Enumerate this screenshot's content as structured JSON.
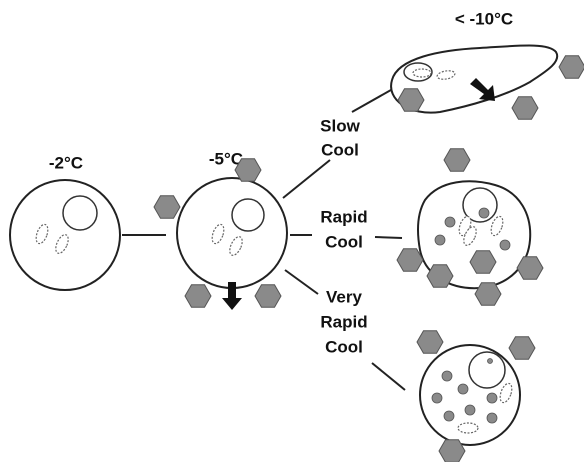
{
  "labels": {
    "temp_cold": "< -10°C",
    "temp_start": "-2°C",
    "temp_mid": "-5°C"
  },
  "paths": [
    {
      "label": [
        "Slow",
        "Cool"
      ]
    },
    {
      "label": [
        "Rapid",
        "Cool"
      ]
    },
    {
      "label": [
        "Very",
        "Rapid",
        "Cool"
      ]
    }
  ]
}
